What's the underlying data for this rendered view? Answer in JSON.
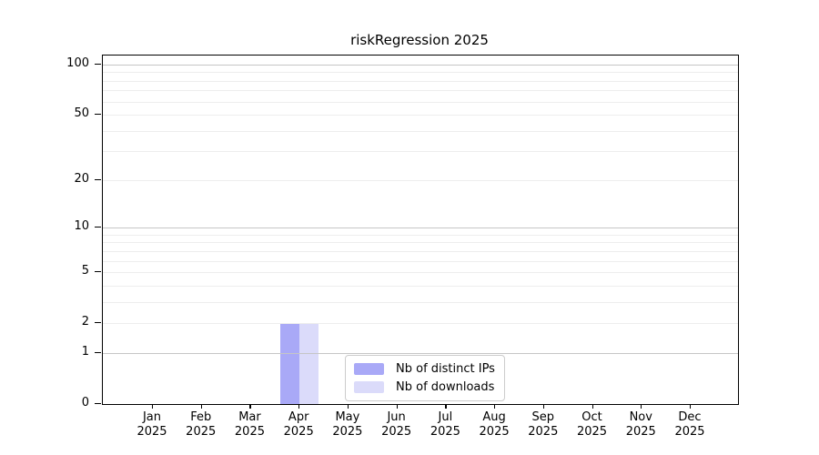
{
  "chart_data": {
    "type": "bar",
    "title": "riskRegression 2025",
    "categories": [
      "Jan 2025",
      "Feb 2025",
      "Mar 2025",
      "Apr 2025",
      "May 2025",
      "Jun 2025",
      "Jul 2025",
      "Aug 2025",
      "Sep 2025",
      "Oct 2025",
      "Nov 2025",
      "Dec 2025"
    ],
    "series": [
      {
        "name": "Nb of distinct IPs",
        "color": "#a9a9f7",
        "values": [
          0,
          0,
          0,
          2,
          0,
          0,
          0,
          0,
          0,
          0,
          0,
          0
        ]
      },
      {
        "name": "Nb of downloads",
        "color": "#dbdbfa",
        "values": [
          0,
          0,
          0,
          2,
          0,
          0,
          0,
          0,
          0,
          0,
          0,
          0
        ]
      }
    ],
    "xlabel": "",
    "ylabel": "",
    "y_scale": "log10(1+x)",
    "ylim": [
      0,
      113
    ],
    "y_ticks": [
      0,
      1,
      2,
      5,
      10,
      20,
      50,
      100
    ],
    "y_gridlines_major": [
      1,
      10,
      100
    ],
    "y_gridlines_minor": [
      2,
      3,
      4,
      5,
      6,
      7,
      8,
      9,
      20,
      30,
      40,
      50,
      60,
      70,
      80,
      90
    ],
    "grid": true,
    "legend_position": "lower center"
  },
  "colors": {
    "bar_distinct_ips": "#a9a9f7",
    "bar_downloads": "#dbdbfa",
    "gridline_minor": "#ededed",
    "gridline_major": "#c6c6c6",
    "axis": "#000000",
    "legend_border": "#cccccc",
    "background": "#ffffff"
  }
}
